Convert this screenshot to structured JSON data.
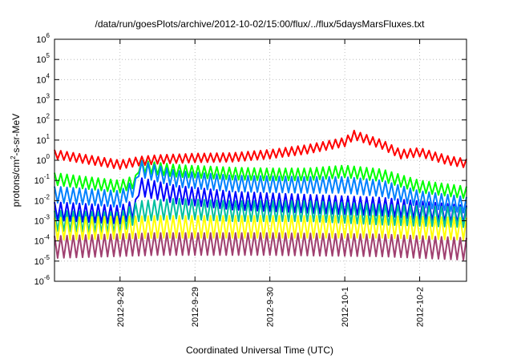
{
  "chart_data": {
    "type": "line",
    "title": "/data/run/goesPlots/archive/2012-10-02/15:00/flux/../flux/5daysMarsFluxes.txt",
    "xlabel": "Coordinated Universal Time (UTC)",
    "ylabel": "protons/cm2-s-sr-MeV",
    "ylabel_parts": {
      "pre": "protons/cm",
      "sup": "2",
      "post": "-s-sr-MeV"
    },
    "y_scale": "log",
    "ylim": [
      1e-06,
      1000000.0
    ],
    "y_ticks": [
      {
        "base": "10",
        "exp": "-6",
        "value": 1e-06
      },
      {
        "base": "10",
        "exp": "-5",
        "value": 1e-05
      },
      {
        "base": "10",
        "exp": "-4",
        "value": 0.0001
      },
      {
        "base": "10",
        "exp": "-3",
        "value": 0.001
      },
      {
        "base": "10",
        "exp": "-2",
        "value": 0.01
      },
      {
        "base": "10",
        "exp": "-1",
        "value": 0.1
      },
      {
        "base": "10",
        "exp": "0",
        "value": 1
      },
      {
        "base": "10",
        "exp": "1",
        "value": 10
      },
      {
        "base": "10",
        "exp": "2",
        "value": 100
      },
      {
        "base": "10",
        "exp": "3",
        "value": 1000
      },
      {
        "base": "10",
        "exp": "4",
        "value": 10000
      },
      {
        "base": "10",
        "exp": "5",
        "value": 100000
      },
      {
        "base": "10",
        "exp": "6",
        "value": 1000000
      }
    ],
    "xlim": [
      "2012-09-27 03:00",
      "2012-10-02 15:00"
    ],
    "x_ticks": [
      "2012-9-28",
      "2012-9-29",
      "2012-9-30",
      "2012-10-1",
      "2012-10-2"
    ],
    "grid": true,
    "legend": "none",
    "series": [
      {
        "color": "#ff0000",
        "values": [
          [
            "2012-09-27 03:00",
            2.0
          ],
          [
            "2012-09-27 12:00",
            1.2
          ],
          [
            "2012-09-28 00:00",
            0.6
          ],
          [
            "2012-09-28 06:00",
            0.9
          ],
          [
            "2012-09-28 12:00",
            1.1
          ],
          [
            "2012-09-29 00:00",
            1.3
          ],
          [
            "2012-09-29 12:00",
            1.4
          ],
          [
            "2012-09-30 00:00",
            2.0
          ],
          [
            "2012-09-30 12:00",
            3.5
          ],
          [
            "2012-10-01 00:00",
            8.0
          ],
          [
            "2012-10-01 03:00",
            18
          ],
          [
            "2012-10-01 12:00",
            6.0
          ],
          [
            "2012-10-01 18:00",
            2.0
          ],
          [
            "2012-10-02 00:00",
            2.5
          ],
          [
            "2012-10-02 09:00",
            1.0
          ],
          [
            "2012-10-02 15:00",
            0.7
          ]
        ]
      },
      {
        "color": "#00ff00",
        "values": [
          [
            "2012-09-27 03:00",
            0.12
          ],
          [
            "2012-09-27 12:00",
            0.08
          ],
          [
            "2012-09-28 00:00",
            0.05
          ],
          [
            "2012-09-28 05:00",
            0.09
          ],
          [
            "2012-09-28 06:00",
            0.5
          ],
          [
            "2012-09-28 18:00",
            0.3
          ],
          [
            "2012-09-29 12:00",
            0.22
          ],
          [
            "2012-09-30 00:00",
            0.2
          ],
          [
            "2012-09-30 12:00",
            0.2
          ],
          [
            "2012-10-01 00:00",
            0.28
          ],
          [
            "2012-10-01 12:00",
            0.18
          ],
          [
            "2012-10-02 00:00",
            0.05
          ],
          [
            "2012-10-02 15:00",
            0.025
          ]
        ]
      },
      {
        "color": "#0080ff",
        "values": [
          [
            "2012-09-27 03:00",
            0.02
          ],
          [
            "2012-09-28 00:00",
            0.012
          ],
          [
            "2012-09-28 05:00",
            0.05
          ],
          [
            "2012-09-28 06:00",
            0.4
          ],
          [
            "2012-09-28 18:00",
            0.12
          ],
          [
            "2012-09-29 12:00",
            0.07
          ],
          [
            "2012-09-30 12:00",
            0.06
          ],
          [
            "2012-10-01 00:00",
            0.06
          ],
          [
            "2012-10-01 12:00",
            0.04
          ],
          [
            "2012-10-02 00:00",
            0.012
          ],
          [
            "2012-10-02 15:00",
            0.006
          ]
        ]
      },
      {
        "color": "#0000ff",
        "values": [
          [
            "2012-09-27 03:00",
            0.003
          ],
          [
            "2012-09-28 00:00",
            0.002
          ],
          [
            "2012-09-28 05:00",
            0.004
          ],
          [
            "2012-09-28 06:00",
            0.05
          ],
          [
            "2012-09-28 18:00",
            0.02
          ],
          [
            "2012-09-29 12:00",
            0.01
          ],
          [
            "2012-09-30 12:00",
            0.007
          ],
          [
            "2012-10-01 12:00",
            0.005
          ],
          [
            "2012-10-02 15:00",
            0.002
          ]
        ]
      },
      {
        "color": "#00c0a0",
        "values": [
          [
            "2012-09-27 03:00",
            0.001
          ],
          [
            "2012-09-28 00:00",
            0.0008
          ],
          [
            "2012-09-28 06:00",
            0.003
          ],
          [
            "2012-09-28 18:00",
            0.004
          ],
          [
            "2012-09-29 12:00",
            0.003
          ],
          [
            "2012-09-30 12:00",
            0.003
          ],
          [
            "2012-10-01 12:00",
            0.002
          ],
          [
            "2012-10-02 15:00",
            0.0015
          ]
        ]
      },
      {
        "color": "#ffff00",
        "values": [
          [
            "2012-09-27 03:00",
            0.0004
          ],
          [
            "2012-09-28 12:00",
            0.0005
          ],
          [
            "2012-09-30 00:00",
            0.0005
          ],
          [
            "2012-10-01 12:00",
            0.0005
          ],
          [
            "2012-10-02 15:00",
            0.0004
          ]
        ]
      },
      {
        "color": "#a04070",
        "values": [
          [
            "2012-09-27 03:00",
            5e-05
          ],
          [
            "2012-09-28 12:00",
            7e-05
          ],
          [
            "2012-09-30 00:00",
            7e-05
          ],
          [
            "2012-10-01 12:00",
            6e-05
          ],
          [
            "2012-10-02 15:00",
            4e-05
          ]
        ]
      }
    ]
  }
}
